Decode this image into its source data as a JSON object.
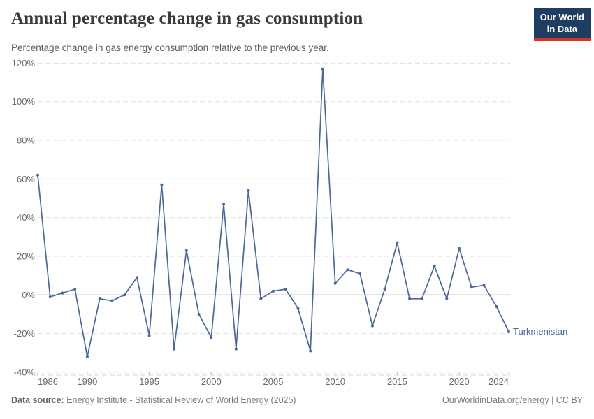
{
  "header": {
    "title": "Annual percentage change in gas consumption",
    "subtitle": "Percentage change in gas energy consumption relative to the previous year.",
    "logo": {
      "line1": "Our World",
      "line2": "in Data",
      "bg_color": "#1d3d63",
      "accent_color": "#d8352a"
    }
  },
  "chart_data": {
    "type": "line",
    "title": "Annual percentage change in gas consumption",
    "xlabel": "",
    "ylabel": "",
    "x": [
      1986,
      1987,
      1988,
      1989,
      1990,
      1991,
      1992,
      1993,
      1994,
      1995,
      1996,
      1997,
      1998,
      1999,
      2000,
      2001,
      2002,
      2003,
      2004,
      2005,
      2006,
      2007,
      2008,
      2009,
      2010,
      2011,
      2012,
      2013,
      2014,
      2015,
      2016,
      2017,
      2018,
      2019,
      2020,
      2021,
      2022,
      2023,
      2024
    ],
    "series": [
      {
        "name": "Turkmenistan",
        "color": "#4a67a0",
        "values": [
          62,
          -1,
          1,
          3,
          -32,
          -2,
          -3,
          0,
          9,
          -21,
          57,
          -28,
          23,
          -10,
          -22,
          47,
          -28,
          54,
          -2,
          2,
          3,
          -7,
          -29,
          117,
          6,
          13,
          11,
          -16,
          3,
          27,
          -2,
          -2,
          15,
          -2,
          24,
          4,
          5,
          -6,
          -19
        ]
      }
    ],
    "ylim": [
      -40,
      120
    ],
    "yticks": [
      -40,
      -20,
      0,
      20,
      40,
      60,
      80,
      100,
      120
    ],
    "y_tick_suffix": "%",
    "xticks": [
      1986,
      1990,
      1995,
      2000,
      2005,
      2010,
      2015,
      2020,
      2024
    ],
    "grid": "horizontal-dashed",
    "legend_position": "end-of-line-label",
    "zero_line_color": "#9e9e9e",
    "grid_color": "#e0e0e0"
  },
  "footer": {
    "source_label": "Data source:",
    "source_text": " Energy Institute - Statistical Review of World Energy (2025)",
    "credit": "OurWorldinData.org/energy | CC BY"
  }
}
